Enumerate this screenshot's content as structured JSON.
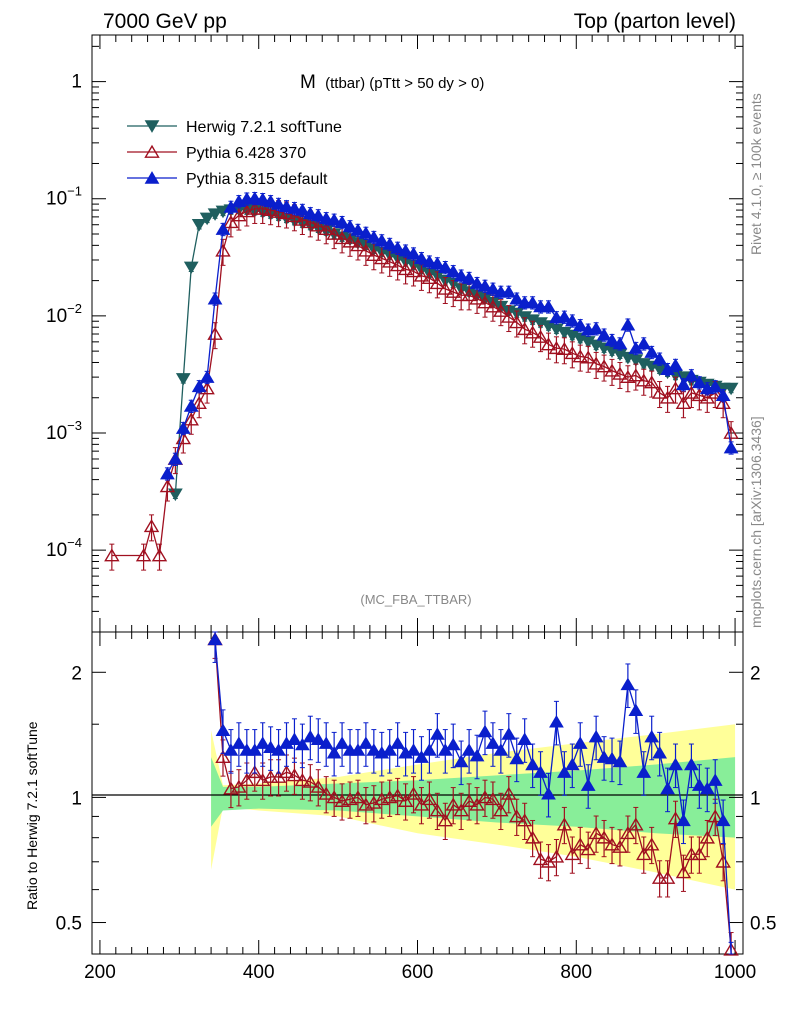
{
  "header": {
    "left": "7000 GeV pp",
    "right": "Top (parton level)"
  },
  "plot_title": {
    "main": "M",
    "sub": "(ttbar) (pTtt > 50 dy > 0)"
  },
  "watermark": "(MC_FBA_TTBAR)",
  "side_text": {
    "rivet": "Rivet 4.1.0, ≥ 100k events",
    "mcplots": "mcplots.cern.ch [arXiv:1306.3436]"
  },
  "ratio_ylabel": "Ratio to Herwig 7.2.1 softTune",
  "chart_data": [
    {
      "type": "scatter",
      "panel": "main",
      "yscale": "log",
      "xlim": [
        190,
        1010
      ],
      "ylim": [
        2e-05,
        2.5
      ],
      "xlabel": "",
      "ylabel": "",
      "ytick_labels": [
        "10^-4",
        "10^-3",
        "10^-2",
        "10^-1",
        "1"
      ],
      "legend_position": "top-left",
      "series": [
        {
          "name": "Herwig 7.2.1 softTune",
          "color": "#1f5f5f",
          "marker": "triangle-down-filled",
          "x": [
            295,
            305,
            315,
            325,
            335,
            345,
            355,
            365,
            375,
            385,
            395,
            405,
            415,
            425,
            435,
            445,
            455,
            465,
            475,
            485,
            495,
            505,
            515,
            525,
            535,
            545,
            555,
            565,
            575,
            585,
            595,
            605,
            615,
            625,
            635,
            645,
            655,
            665,
            675,
            685,
            695,
            705,
            715,
            725,
            735,
            745,
            755,
            765,
            775,
            785,
            795,
            805,
            815,
            825,
            835,
            845,
            855,
            865,
            875,
            885,
            895,
            905,
            915,
            925,
            935,
            945,
            955,
            965,
            975,
            985,
            995
          ],
          "y": [
            0.0003,
            0.0029,
            0.026,
            0.06,
            0.068,
            0.074,
            0.078,
            0.08,
            0.081,
            0.08,
            0.079,
            0.077,
            0.074,
            0.071,
            0.068,
            0.065,
            0.062,
            0.059,
            0.056,
            0.053,
            0.05,
            0.047,
            0.045,
            0.042,
            0.04,
            0.037,
            0.035,
            0.033,
            0.031,
            0.029,
            0.027,
            0.025,
            0.023,
            0.022,
            0.02,
            0.019,
            0.017,
            0.016,
            0.015,
            0.014,
            0.013,
            0.012,
            0.011,
            0.0105,
            0.0098,
            0.0092,
            0.0087,
            0.0082,
            0.0077,
            0.0072,
            0.0068,
            0.0064,
            0.006,
            0.0056,
            0.0053,
            0.005,
            0.0047,
            0.0044,
            0.0042,
            0.0039,
            0.0037,
            0.0035,
            0.0033,
            0.0031,
            0.003,
            0.0028,
            0.0027,
            0.0026,
            0.0025,
            0.0024,
            0.0024
          ],
          "yerr_frac": 0.08
        },
        {
          "name": "Pythia 6.428 370",
          "color": "#a01020",
          "marker": "triangle-up-open",
          "x": [
            215,
            255,
            265,
            275,
            285,
            295,
            305,
            315,
            325,
            335,
            345,
            355,
            365,
            375,
            385,
            395,
            405,
            415,
            425,
            435,
            445,
            455,
            465,
            475,
            485,
            495,
            505,
            515,
            525,
            535,
            545,
            555,
            565,
            575,
            585,
            595,
            605,
            615,
            625,
            635,
            645,
            655,
            665,
            675,
            685,
            695,
            705,
            715,
            725,
            735,
            745,
            755,
            765,
            775,
            785,
            795,
            805,
            815,
            825,
            835,
            845,
            855,
            865,
            875,
            885,
            895,
            905,
            915,
            925,
            935,
            945,
            955,
            965,
            975,
            985,
            995
          ],
          "y": [
            9e-05,
            9e-05,
            0.00016,
            9e-05,
            0.00035,
            0.0006,
            0.0009,
            0.0013,
            0.0018,
            0.0024,
            0.007,
            0.036,
            0.063,
            0.072,
            0.078,
            0.082,
            0.082,
            0.08,
            0.077,
            0.075,
            0.071,
            0.066,
            0.063,
            0.059,
            0.055,
            0.05,
            0.046,
            0.043,
            0.04,
            0.036,
            0.033,
            0.031,
            0.029,
            0.027,
            0.025,
            0.024,
            0.022,
            0.021,
            0.019,
            0.017,
            0.016,
            0.015,
            0.015,
            0.014,
            0.013,
            0.012,
            0.011,
            0.0098,
            0.0088,
            0.0077,
            0.0072,
            0.0066,
            0.0057,
            0.0053,
            0.0052,
            0.0048,
            0.0045,
            0.0044,
            0.0039,
            0.0037,
            0.0034,
            0.0032,
            0.003,
            0.0031,
            0.0028,
            0.0027,
            0.0022,
            0.002,
            0.0024,
            0.0018,
            0.0022,
            0.0021,
            0.002,
            0.0022,
            0.0018,
            0.001
          ],
          "yerr_frac": 0.25
        },
        {
          "name": "Pythia 8.315 default",
          "color": "#0a1fcc",
          "marker": "triangle-up-filled",
          "x": [
            285,
            295,
            305,
            315,
            325,
            335,
            345,
            355,
            365,
            375,
            385,
            395,
            405,
            415,
            425,
            435,
            445,
            455,
            465,
            475,
            485,
            495,
            505,
            515,
            525,
            535,
            545,
            555,
            565,
            575,
            585,
            595,
            605,
            615,
            625,
            635,
            645,
            655,
            665,
            675,
            685,
            695,
            705,
            715,
            725,
            735,
            745,
            755,
            765,
            775,
            785,
            795,
            805,
            815,
            825,
            835,
            845,
            855,
            865,
            875,
            885,
            895,
            905,
            915,
            925,
            935,
            945,
            955,
            965,
            975,
            985,
            995
          ],
          "y": [
            0.00045,
            0.0006,
            0.0011,
            0.0017,
            0.0025,
            0.003,
            0.014,
            0.055,
            0.085,
            0.095,
            0.1,
            0.101,
            0.099,
            0.095,
            0.09,
            0.086,
            0.083,
            0.08,
            0.075,
            0.072,
            0.068,
            0.066,
            0.063,
            0.058,
            0.054,
            0.051,
            0.047,
            0.044,
            0.041,
            0.038,
            0.036,
            0.034,
            0.031,
            0.029,
            0.028,
            0.026,
            0.024,
            0.022,
            0.021,
            0.019,
            0.018,
            0.017,
            0.016,
            0.016,
            0.014,
            0.013,
            0.013,
            0.012,
            0.012,
            0.0097,
            0.0098,
            0.0091,
            0.0083,
            0.0076,
            0.0078,
            0.0069,
            0.0062,
            0.0058,
            0.0084,
            0.0053,
            0.0058,
            0.0049,
            0.0043,
            0.0035,
            0.0038,
            0.0026,
            0.0031,
            0.0027,
            0.0024,
            0.0025,
            0.0021,
            0.00075
          ],
          "yerr_frac": 0.12
        }
      ]
    },
    {
      "type": "scatter",
      "panel": "ratio",
      "yscale": "log",
      "xlim": [
        190,
        1010
      ],
      "ylim": [
        0.42,
        2.5
      ],
      "xlabel": "",
      "ylabel": "Ratio to Herwig 7.2.1 softTune",
      "xtick_labels": [
        "200",
        "400",
        "600",
        "800",
        "1000"
      ],
      "ytick_labels": [
        "0.5",
        "1",
        "2"
      ],
      "reference": 1,
      "bands": {
        "x": [
          340,
          355,
          400,
          500,
          600,
          700,
          800,
          900,
          1000
        ],
        "green_lo": [
          0.85,
          0.93,
          0.94,
          0.93,
          0.9,
          0.87,
          0.85,
          0.82,
          0.8
        ],
        "green_hi": [
          1.25,
          1.06,
          1.06,
          1.08,
          1.1,
          1.13,
          1.16,
          1.2,
          1.25
        ],
        "yellow_lo": [
          0.67,
          0.95,
          0.93,
          0.9,
          0.82,
          0.77,
          0.72,
          0.66,
          0.6
        ],
        "yellow_hi": [
          1.45,
          1.07,
          1.08,
          1.12,
          1.2,
          1.28,
          1.35,
          1.42,
          1.5
        ]
      },
      "series": [
        {
          "name": "Pythia 6.428 370 / Herwig 7.2.1 softTune",
          "x": [
            345,
            355,
            365,
            375,
            385,
            395,
            405,
            415,
            425,
            435,
            445,
            455,
            465,
            475,
            485,
            495,
            505,
            515,
            525,
            535,
            545,
            555,
            565,
            575,
            585,
            595,
            605,
            615,
            625,
            635,
            645,
            655,
            665,
            675,
            685,
            695,
            705,
            715,
            725,
            735,
            745,
            755,
            765,
            775,
            785,
            795,
            805,
            815,
            825,
            835,
            845,
            855,
            865,
            875,
            885,
            895,
            905,
            915,
            925,
            935,
            945,
            955,
            965,
            975,
            985,
            995
          ],
          "y": [
            2.4,
            1.25,
            1.05,
            1.06,
            1.1,
            1.15,
            1.1,
            1.12,
            1.12,
            1.15,
            1.13,
            1.1,
            1.09,
            1.06,
            1.02,
            1.0,
            0.98,
            0.99,
            1.0,
            0.96,
            0.97,
            0.99,
            1.0,
            1.01,
            0.98,
            1.02,
            0.96,
            0.99,
            0.93,
            0.88,
            0.96,
            0.93,
            0.98,
            0.96,
            1.0,
            0.99,
            0.93,
            1.02,
            0.9,
            0.88,
            0.8,
            0.71,
            0.7,
            0.72,
            0.86,
            0.73,
            0.77,
            0.75,
            0.82,
            0.8,
            0.77,
            0.76,
            0.82,
            0.86,
            0.73,
            0.77,
            0.64,
            0.64,
            0.89,
            0.66,
            0.73,
            0.73,
            0.8,
            0.9,
            0.7,
            0.43
          ],
          "yerr_frac": 0.1
        },
        {
          "name": "Pythia 8.315 default / Herwig 7.2.1 softTune",
          "x": [
            345,
            355,
            365,
            375,
            385,
            395,
            405,
            415,
            425,
            435,
            445,
            455,
            465,
            475,
            485,
            495,
            505,
            515,
            525,
            535,
            545,
            555,
            565,
            575,
            585,
            595,
            605,
            615,
            625,
            635,
            645,
            655,
            665,
            675,
            685,
            695,
            705,
            715,
            725,
            735,
            745,
            755,
            765,
            775,
            785,
            795,
            805,
            815,
            825,
            835,
            845,
            855,
            865,
            875,
            885,
            895,
            905,
            915,
            925,
            935,
            945,
            955,
            965,
            975,
            985,
            995
          ],
          "y": [
            2.4,
            1.45,
            1.3,
            1.35,
            1.3,
            1.3,
            1.35,
            1.32,
            1.3,
            1.35,
            1.38,
            1.34,
            1.4,
            1.38,
            1.35,
            1.28,
            1.35,
            1.3,
            1.3,
            1.35,
            1.3,
            1.28,
            1.3,
            1.35,
            1.28,
            1.3,
            1.25,
            1.3,
            1.42,
            1.3,
            1.34,
            1.22,
            1.3,
            1.26,
            1.44,
            1.35,
            1.3,
            1.42,
            1.24,
            1.38,
            1.2,
            1.15,
            1.02,
            1.52,
            1.15,
            1.2,
            1.35,
            1.07,
            1.4,
            1.25,
            1.24,
            1.22,
            1.87,
            1.62,
            1.15,
            1.4,
            1.28,
            1.05,
            1.2,
            0.88,
            1.2,
            1.07,
            1.05,
            1.1,
            0.88,
            0.4
          ],
          "yerr_frac": 0.12
        }
      ]
    }
  ]
}
